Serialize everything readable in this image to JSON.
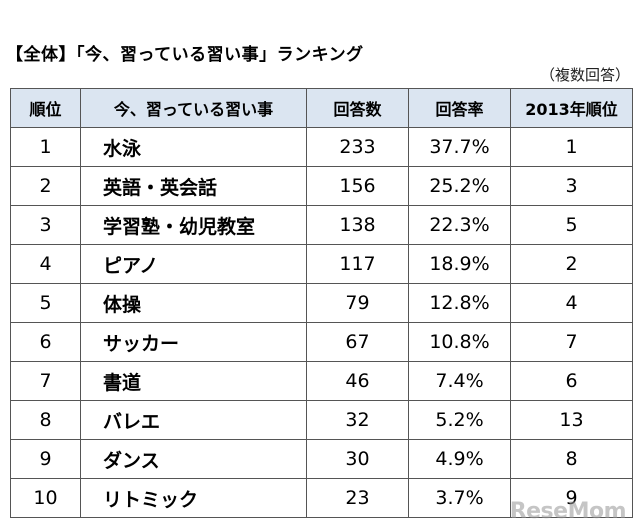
{
  "title": "【全体】「今、習っている習い事」ランキング",
  "note": "（複数回答）",
  "table": {
    "headers": [
      "順位",
      "今、習っている習い事",
      "回答数",
      "回答率",
      "2013年順位"
    ],
    "rows": [
      {
        "rank": "1",
        "name": "水泳",
        "count": "233",
        "rate": "37.7%",
        "prev": "1"
      },
      {
        "rank": "2",
        "name": "英語・英会話",
        "count": "156",
        "rate": "25.2%",
        "prev": "3"
      },
      {
        "rank": "3",
        "name": "学習塾・幼児教室",
        "count": "138",
        "rate": "22.3%",
        "prev": "5"
      },
      {
        "rank": "4",
        "name": "ピアノ",
        "count": "117",
        "rate": "18.9%",
        "prev": "2"
      },
      {
        "rank": "5",
        "name": "体操",
        "count": "79",
        "rate": "12.8%",
        "prev": "4"
      },
      {
        "rank": "6",
        "name": "サッカー",
        "count": "67",
        "rate": "10.8%",
        "prev": "7"
      },
      {
        "rank": "7",
        "name": "書道",
        "count": "46",
        "rate": "7.4%",
        "prev": "6"
      },
      {
        "rank": "8",
        "name": "バレエ",
        "count": "32",
        "rate": "5.2%",
        "prev": "13"
      },
      {
        "rank": "9",
        "name": "ダンス",
        "count": "30",
        "rate": "4.9%",
        "prev": "8"
      },
      {
        "rank": "10",
        "name": "リトミック",
        "count": "23",
        "rate": "3.7%",
        "prev": "9"
      }
    ]
  },
  "watermark": "ReseMom"
}
